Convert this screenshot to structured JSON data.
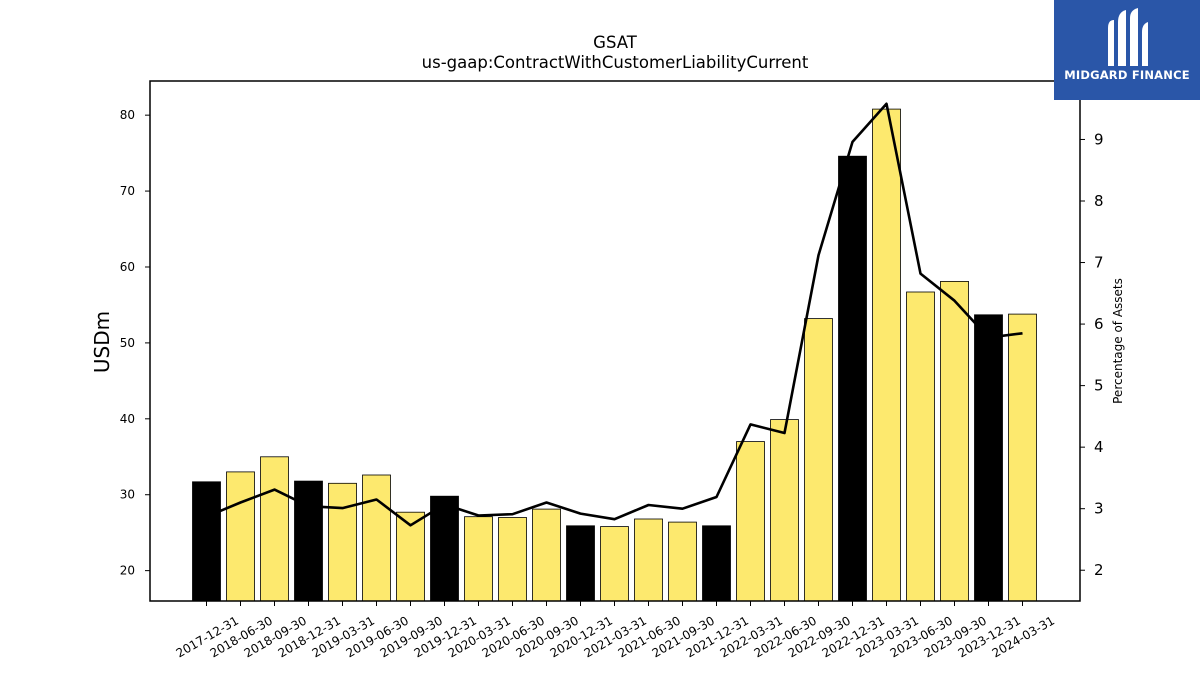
{
  "brand": {
    "name": "MIDGARD FINANCE",
    "bg_color": "#2a56a8"
  },
  "chart_data": {
    "type": "bar",
    "title": "GSAT",
    "subtitle": "us-gaap:ContractWithCustomerLiabilityCurrent",
    "ylabel": "USDm",
    "y2label": "Percentage of Assets",
    "ylim": [
      16,
      84.5
    ],
    "y2lim": [
      1.5,
      9.95
    ],
    "yticks": [
      20,
      30,
      40,
      50,
      60,
      70,
      80
    ],
    "y2ticks": [
      2,
      3,
      4,
      5,
      6,
      7,
      8,
      9
    ],
    "categories": [
      "2017-12-31",
      "2018-06-30",
      "2018-09-30",
      "2018-12-31",
      "2019-03-31",
      "2019-06-30",
      "2019-09-30",
      "2019-12-31",
      "2020-03-31",
      "2020-06-30",
      "2020-09-30",
      "2020-12-31",
      "2021-03-31",
      "2021-06-30",
      "2021-09-30",
      "2021-12-31",
      "2022-03-31",
      "2022-06-30",
      "2022-09-30",
      "2022-12-31",
      "2023-03-31",
      "2023-06-30",
      "2023-09-30",
      "2023-12-31",
      "2024-03-31"
    ],
    "series": [
      {
        "type": "bar",
        "values": [
          31.7,
          33.0,
          35.0,
          31.8,
          31.5,
          32.6,
          27.7,
          29.8,
          27.1,
          27.0,
          28.1,
          25.9,
          25.8,
          26.8,
          26.4,
          25.9,
          37.0,
          39.9,
          53.2,
          74.6,
          80.8,
          56.7,
          58.1,
          53.7,
          53.8
        ],
        "annual": [
          true,
          false,
          false,
          true,
          false,
          false,
          false,
          true,
          false,
          false,
          false,
          true,
          false,
          false,
          false,
          true,
          false,
          false,
          false,
          true,
          false,
          false,
          false,
          true,
          false
        ]
      },
      {
        "type": "line",
        "values": [
          2.87,
          3.1,
          3.31,
          3.04,
          3.01,
          3.15,
          2.73,
          3.07,
          2.89,
          2.91,
          3.1,
          2.92,
          2.83,
          3.06,
          3.0,
          3.19,
          4.37,
          4.23,
          7.12,
          8.96,
          9.58,
          6.82,
          6.38,
          5.78,
          5.85
        ]
      }
    ],
    "colors": {
      "annual_bar": "#000000",
      "quarter_bar": "#fde96e",
      "line": "#000000",
      "edge": "#000000"
    }
  }
}
